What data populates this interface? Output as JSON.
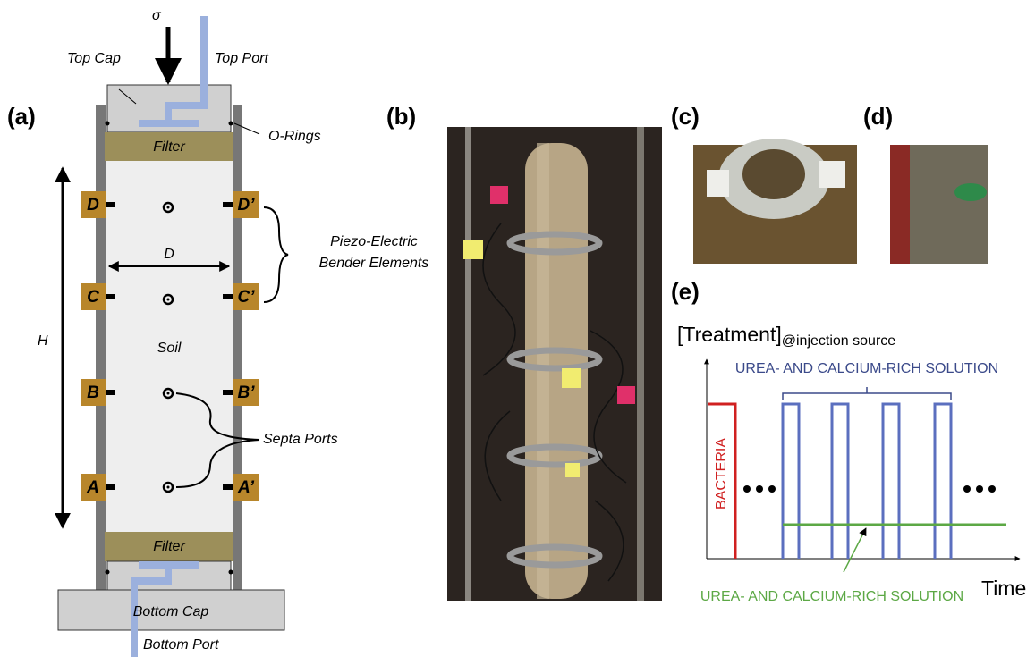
{
  "panels": {
    "a": {
      "label": "(a)",
      "sigma": "σ",
      "top_cap": "Top Cap",
      "top_port": "Top Port",
      "o_rings": "O-Rings",
      "filter_top": "Filter",
      "filter_bottom": "Filter",
      "bottom_cap": "Bottom Cap",
      "bottom_port": "Bottom Port",
      "soil": "Soil",
      "height": "H",
      "diameter": "D",
      "bender": [
        "Piezo-Electric",
        "Bender Elements"
      ],
      "septa": "Septa Ports",
      "sensors_left": [
        "D",
        "C",
        "B",
        "A"
      ],
      "sensors_right": [
        "D’",
        "C’",
        "B’",
        "A’"
      ]
    },
    "b": {
      "label": "(b)"
    },
    "c": {
      "label": "(c)"
    },
    "d": {
      "label": "(d)"
    },
    "e": {
      "label": "(e)",
      "y_axis": "[Treatment]",
      "y_axis_sub": "@injection source",
      "x_axis": "Time",
      "bacteria": "BACTERIA",
      "blue_label": "UREA- AND CALCIUM-RICH SOLUTION",
      "green_label": "UREA- AND CALCIUM-RICH SOLUTION"
    }
  }
}
